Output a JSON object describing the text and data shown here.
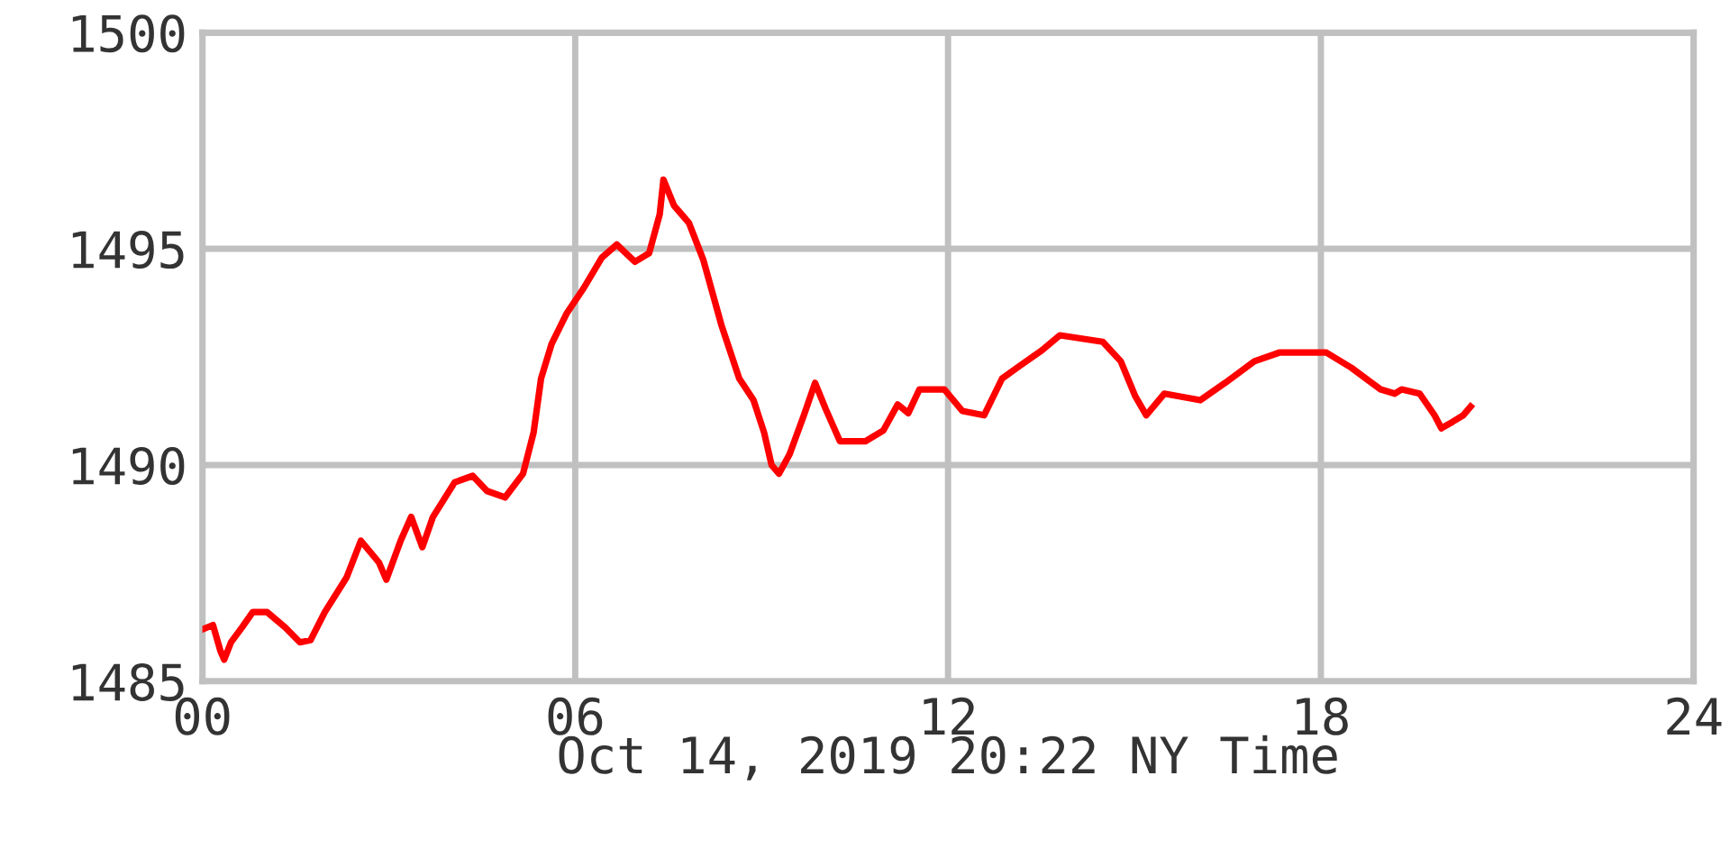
{
  "chart_data": {
    "type": "line",
    "xlabel": "Oct 14, 2019 20:22 NY Time",
    "x": [
      0,
      0.17,
      0.29,
      0.35,
      0.46,
      0.64,
      0.81,
      1.04,
      1.33,
      1.57,
      1.74,
      1.97,
      2.32,
      2.55,
      2.84,
      2.96,
      3.19,
      3.36,
      3.54,
      3.71,
      4.06,
      4.35,
      4.58,
      4.87,
      5.16,
      5.33,
      5.45,
      5.62,
      5.86,
      6.14,
      6.43,
      6.67,
      6.96,
      7.19,
      7.36,
      7.42,
      7.59,
      7.83,
      8.06,
      8.35,
      8.64,
      8.87,
      9.04,
      9.16,
      9.28,
      9.45,
      9.68,
      9.86,
      10.03,
      10.26,
      10.67,
      10.96,
      11.19,
      11.36,
      11.54,
      11.94,
      12.23,
      12.58,
      12.87,
      13.16,
      13.51,
      13.8,
      14.49,
      14.78,
      15.01,
      15.19,
      15.48,
      16.06,
      16.46,
      16.93,
      17.33,
      18.09,
      18.49,
      18.96,
      19.19,
      19.3,
      19.59,
      19.83,
      19.94,
      20.12,
      20.29,
      20.41
    ],
    "series": [
      {
        "color": "#ff0000",
        "values": [
          1486.2,
          1486.3,
          1485.7,
          1485.5,
          1485.9,
          1486.25,
          1486.6,
          1486.6,
          1486.25,
          1485.9,
          1485.95,
          1486.6,
          1487.4,
          1488.25,
          1487.75,
          1487.35,
          1488.25,
          1488.8,
          1488.1,
          1488.8,
          1489.6,
          1489.75,
          1489.4,
          1489.25,
          1489.8,
          1490.75,
          1492.0,
          1492.8,
          1493.5,
          1494.1,
          1494.8,
          1495.1,
          1494.7,
          1494.9,
          1495.8,
          1496.6,
          1496.0,
          1495.6,
          1494.75,
          1493.25,
          1492.0,
          1491.5,
          1490.75,
          1490.0,
          1489.8,
          1490.25,
          1491.15,
          1491.9,
          1491.3,
          1490.55,
          1490.55,
          1490.8,
          1491.4,
          1491.2,
          1491.75,
          1491.75,
          1491.25,
          1491.15,
          1492.0,
          1492.3,
          1492.65,
          1493.0,
          1492.85,
          1492.4,
          1491.6,
          1491.15,
          1491.65,
          1491.5,
          1491.9,
          1492.4,
          1492.6,
          1492.6,
          1492.25,
          1491.75,
          1491.65,
          1491.75,
          1491.65,
          1491.15,
          1490.85,
          1491.0,
          1491.15,
          1491.35
        ]
      }
    ],
    "xlim": [
      0,
      24
    ],
    "xticks": [
      {
        "value": 0,
        "label": "00"
      },
      {
        "value": 6,
        "label": "06"
      },
      12,
      18,
      24
    ],
    "ylim": [
      1485,
      1500
    ],
    "yticks": [
      1485,
      1490,
      1495,
      1500
    ],
    "grid": true,
    "marker": "none",
    "line_style": "solid"
  }
}
